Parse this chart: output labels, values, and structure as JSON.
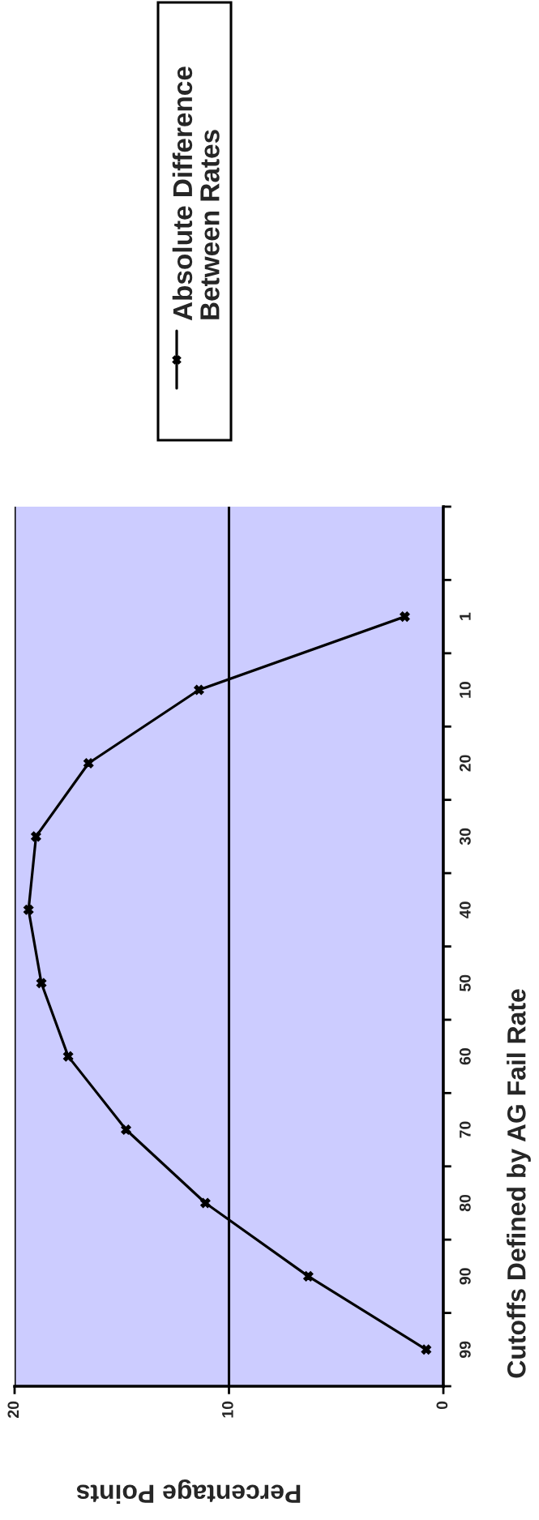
{
  "chart_data": {
    "type": "line",
    "orientation": "horizontal",
    "xlabel": "Percentage Points",
    "ylabel": "Cutoffs Defined by AG Fail Rate",
    "categories": [
      null,
      "1",
      "10",
      "20",
      "30",
      "40",
      "50",
      "60",
      "70",
      "80",
      "90",
      "99"
    ],
    "series": [
      {
        "name": "Absolute Difference Between Rates",
        "color": "#000000",
        "values": [
          null,
          1.8,
          11.4,
          16.55,
          19.0,
          19.35,
          18.75,
          17.5,
          14.8,
          11.1,
          6.3,
          0.8
        ]
      }
    ],
    "xlim": [
      20,
      0
    ],
    "xticks": [
      20,
      10,
      0
    ],
    "grid": "x",
    "legend": "top",
    "marker": "cross",
    "line_style": "solid"
  }
}
